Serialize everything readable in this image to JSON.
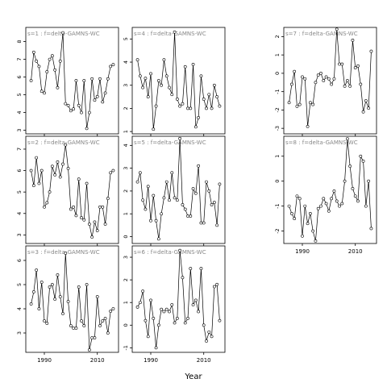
{
  "figure": {
    "xlabel": "Year"
  },
  "chart_data": [
    {
      "type": "line",
      "panel_label": "s=1 : f=delta-GAMNS-WC",
      "xlim": [
        1983,
        2018
      ],
      "xticks": [
        1990,
        2010
      ],
      "ylim": [
        2.8,
        8.8
      ],
      "yticks": [
        3,
        4,
        5,
        6,
        7,
        8
      ],
      "x": [
        1985,
        1986,
        1987,
        1988,
        1989,
        1990,
        1991,
        1992,
        1993,
        1994,
        1995,
        1996,
        1997,
        1998,
        1999,
        2000,
        2001,
        2002,
        2003,
        2004,
        2005,
        2006,
        2007,
        2008,
        2009,
        2010,
        2011,
        2012,
        2013,
        2014,
        2015,
        2016
      ],
      "y": [
        5.8,
        7.4,
        6.9,
        6.6,
        5.2,
        5.1,
        6.3,
        7.0,
        7.2,
        6.4,
        5.4,
        6.9,
        8.5,
        4.5,
        4.4,
        4.1,
        4.2,
        5.8,
        4.4,
        4.0,
        5.8,
        3.1,
        4.0,
        5.9,
        4.7,
        4.9,
        5.9,
        4.6,
        5.1,
        5.9,
        6.6,
        6.7
      ]
    },
    {
      "type": "line",
      "panel_label": "s=2 : f=delta-GAMNS-WC",
      "xlim": [
        1983,
        2018
      ],
      "xticks": [
        1990,
        2010
      ],
      "ylim": [
        2.6,
        7.6
      ],
      "yticks": [
        3,
        4,
        5,
        6,
        7
      ],
      "x": [
        1985,
        1986,
        1987,
        1988,
        1989,
        1990,
        1991,
        1992,
        1993,
        1994,
        1995,
        1996,
        1997,
        1998,
        1999,
        2000,
        2001,
        2002,
        2003,
        2004,
        2005,
        2006,
        2007,
        2008,
        2009,
        2010,
        2011,
        2012,
        2013,
        2014,
        2015,
        2016
      ],
      "y": [
        6.0,
        5.3,
        6.6,
        5.4,
        6.0,
        4.3,
        4.5,
        5.0,
        6.2,
        5.8,
        6.4,
        5.7,
        6.3,
        7.2,
        6.1,
        4.2,
        4.3,
        3.9,
        5.6,
        3.8,
        3.7,
        5.4,
        3.5,
        2.9,
        3.6,
        3.2,
        4.3,
        4.3,
        3.5,
        4.7,
        5.9,
        6.0
      ]
    },
    {
      "type": "line",
      "panel_label": "s=3 : f=delta-GAMNS-WC",
      "xlim": [
        1983,
        2018
      ],
      "xticks": [
        1990,
        2010
      ],
      "ylim": [
        2.2,
        6.6
      ],
      "yticks": [
        3,
        4,
        5,
        6
      ],
      "x": [
        1985,
        1986,
        1987,
        1988,
        1989,
        1990,
        1991,
        1992,
        1993,
        1994,
        1995,
        1996,
        1997,
        1998,
        1999,
        2000,
        2001,
        2002,
        2003,
        2004,
        2005,
        2006,
        2007,
        2008,
        2009,
        2010,
        2011,
        2012,
        2013,
        2014,
        2015,
        2016
      ],
      "y": [
        4.2,
        4.7,
        5.6,
        4.0,
        5.1,
        3.5,
        3.4,
        4.9,
        5.0,
        4.4,
        5.4,
        4.5,
        3.8,
        6.3,
        4.3,
        3.3,
        3.2,
        3.2,
        4.9,
        3.5,
        3.3,
        5.0,
        2.3,
        2.8,
        2.8,
        4.5,
        3.3,
        3.5,
        3.6,
        3.0,
        3.9,
        4.0
      ]
    },
    {
      "type": "line",
      "panel_label": "s=4 : f=delta-GAMNS-WC",
      "xlim": [
        1983,
        2018
      ],
      "xticks": [
        1990,
        2010
      ],
      "ylim": [
        0.9,
        5.5
      ],
      "yticks": [
        1,
        2,
        3,
        4,
        5
      ],
      "x": [
        1985,
        1986,
        1987,
        1988,
        1989,
        1990,
        1991,
        1992,
        1993,
        1994,
        1995,
        1996,
        1997,
        1998,
        1999,
        2000,
        2001,
        2002,
        2003,
        2004,
        2005,
        2006,
        2007,
        2008,
        2009,
        2010,
        2011,
        2012,
        2013,
        2014,
        2015,
        2016
      ],
      "y": [
        4.1,
        3.4,
        2.9,
        3.3,
        2.5,
        3.5,
        1.1,
        2.1,
        3.2,
        3.0,
        4.1,
        3.4,
        2.9,
        2.6,
        5.3,
        2.4,
        2.1,
        2.2,
        3.8,
        2.0,
        2.0,
        3.9,
        1.2,
        1.6,
        3.4,
        2.4,
        2.0,
        2.6,
        2.0,
        3.0,
        2.5,
        2.1
      ]
    },
    {
      "type": "line",
      "panel_label": "s=5 : f=delta-GAMNS-WC",
      "xlim": [
        1983,
        2018
      ],
      "xticks": [
        1990,
        2010
      ],
      "ylim": [
        -0.3,
        4.4
      ],
      "yticks": [
        0,
        1,
        2,
        3,
        4
      ],
      "x": [
        1985,
        1986,
        1987,
        1988,
        1989,
        1990,
        1991,
        1992,
        1993,
        1994,
        1995,
        1996,
        1997,
        1998,
        1999,
        2000,
        2001,
        2002,
        2003,
        2004,
        2005,
        2006,
        2007,
        2008,
        2009,
        2010,
        2011,
        2012,
        2013,
        2014,
        2015,
        2016
      ],
      "y": [
        2.4,
        2.8,
        1.6,
        1.2,
        2.2,
        0.7,
        1.8,
        0.7,
        -0.1,
        1.0,
        1.7,
        2.4,
        1.6,
        2.8,
        1.7,
        1.6,
        4.3,
        1.4,
        1.2,
        0.9,
        0.9,
        2.1,
        1.9,
        3.1,
        0.6,
        0.6,
        2.4,
        2.0,
        1.4,
        1.5,
        0.5,
        2.3
      ]
    },
    {
      "type": "line",
      "panel_label": "s=6 : f=delta-GAMNS-WC",
      "xlim": [
        1983,
        2018
      ],
      "xticks": [
        1990,
        2010
      ],
      "ylim": [
        -1.2,
        3.5
      ],
      "yticks": [
        -1,
        0,
        1,
        2,
        3
      ],
      "x": [
        1985,
        1986,
        1987,
        1988,
        1989,
        1990,
        1991,
        1992,
        1993,
        1994,
        1995,
        1996,
        1997,
        1998,
        1999,
        2000,
        2001,
        2002,
        2003,
        2004,
        2005,
        2006,
        2007,
        2008,
        2009,
        2010,
        2011,
        2012,
        2013,
        2014,
        2015,
        2016
      ],
      "y": [
        0.8,
        1.0,
        1.5,
        0.2,
        -0.5,
        1.1,
        0.3,
        -1.0,
        0.0,
        0.7,
        0.6,
        0.7,
        0.6,
        0.9,
        0.1,
        0.3,
        3.3,
        2.1,
        0.1,
        0.3,
        2.5,
        0.9,
        1.1,
        0.6,
        2.5,
        0.0,
        -0.7,
        -0.3,
        -0.5,
        1.7,
        1.8,
        0.2
      ]
    },
    {
      "type": "line",
      "panel_label": "s=7 : f=delta-GAMNS-WC",
      "xlim": [
        1983,
        2018
      ],
      "xticks": [
        1990,
        2010
      ],
      "ylim": [
        -3.3,
        2.5
      ],
      "yticks": [
        -3,
        -2,
        -1,
        0,
        1,
        2
      ],
      "x": [
        1985,
        1986,
        1987,
        1988,
        1989,
        1990,
        1991,
        1992,
        1993,
        1994,
        1995,
        1996,
        1997,
        1998,
        1999,
        2000,
        2001,
        2002,
        2003,
        2004,
        2005,
        2006,
        2007,
        2008,
        2009,
        2010,
        2011,
        2012,
        2013,
        2014,
        2015,
        2016
      ],
      "y": [
        -1.6,
        -0.6,
        0.1,
        -1.8,
        -1.7,
        -0.2,
        -0.3,
        -2.9,
        -1.6,
        -1.7,
        -0.5,
        -0.1,
        0.0,
        -0.4,
        -0.2,
        -0.3,
        -0.6,
        -0.3,
        2.4,
        0.5,
        0.5,
        -0.7,
        -0.4,
        -0.7,
        1.8,
        0.3,
        0.4,
        -0.6,
        -2.1,
        -1.5,
        -1.9,
        1.2
      ]
    },
    {
      "type": "line",
      "panel_label": "s=8 : f=delta-GAMNS-WC",
      "xlim": [
        1983,
        2018
      ],
      "xticks": [
        1990,
        2010
      ],
      "ylim": [
        -2.5,
        1.8
      ],
      "yticks": [
        -2,
        -1,
        0,
        1
      ],
      "x": [
        1985,
        1986,
        1987,
        1988,
        1989,
        1990,
        1991,
        1992,
        1993,
        1994,
        1995,
        1996,
        1997,
        1998,
        1999,
        2000,
        2001,
        2002,
        2003,
        2004,
        2005,
        2006,
        2007,
        2008,
        2009,
        2010,
        2011,
        2012,
        2013,
        2014,
        2015,
        2016
      ],
      "y": [
        -1.0,
        -1.3,
        -1.5,
        -0.6,
        -0.7,
        -2.2,
        -1.0,
        -1.7,
        -1.3,
        -2.0,
        -2.4,
        -1.1,
        -1.0,
        -0.7,
        -0.9,
        -1.2,
        -0.7,
        -0.4,
        -0.8,
        -1.0,
        -0.9,
        0.0,
        1.7,
        0.6,
        -0.3,
        -0.6,
        -0.8,
        1.0,
        0.8,
        -1.0,
        0.0,
        -1.9
      ]
    }
  ]
}
